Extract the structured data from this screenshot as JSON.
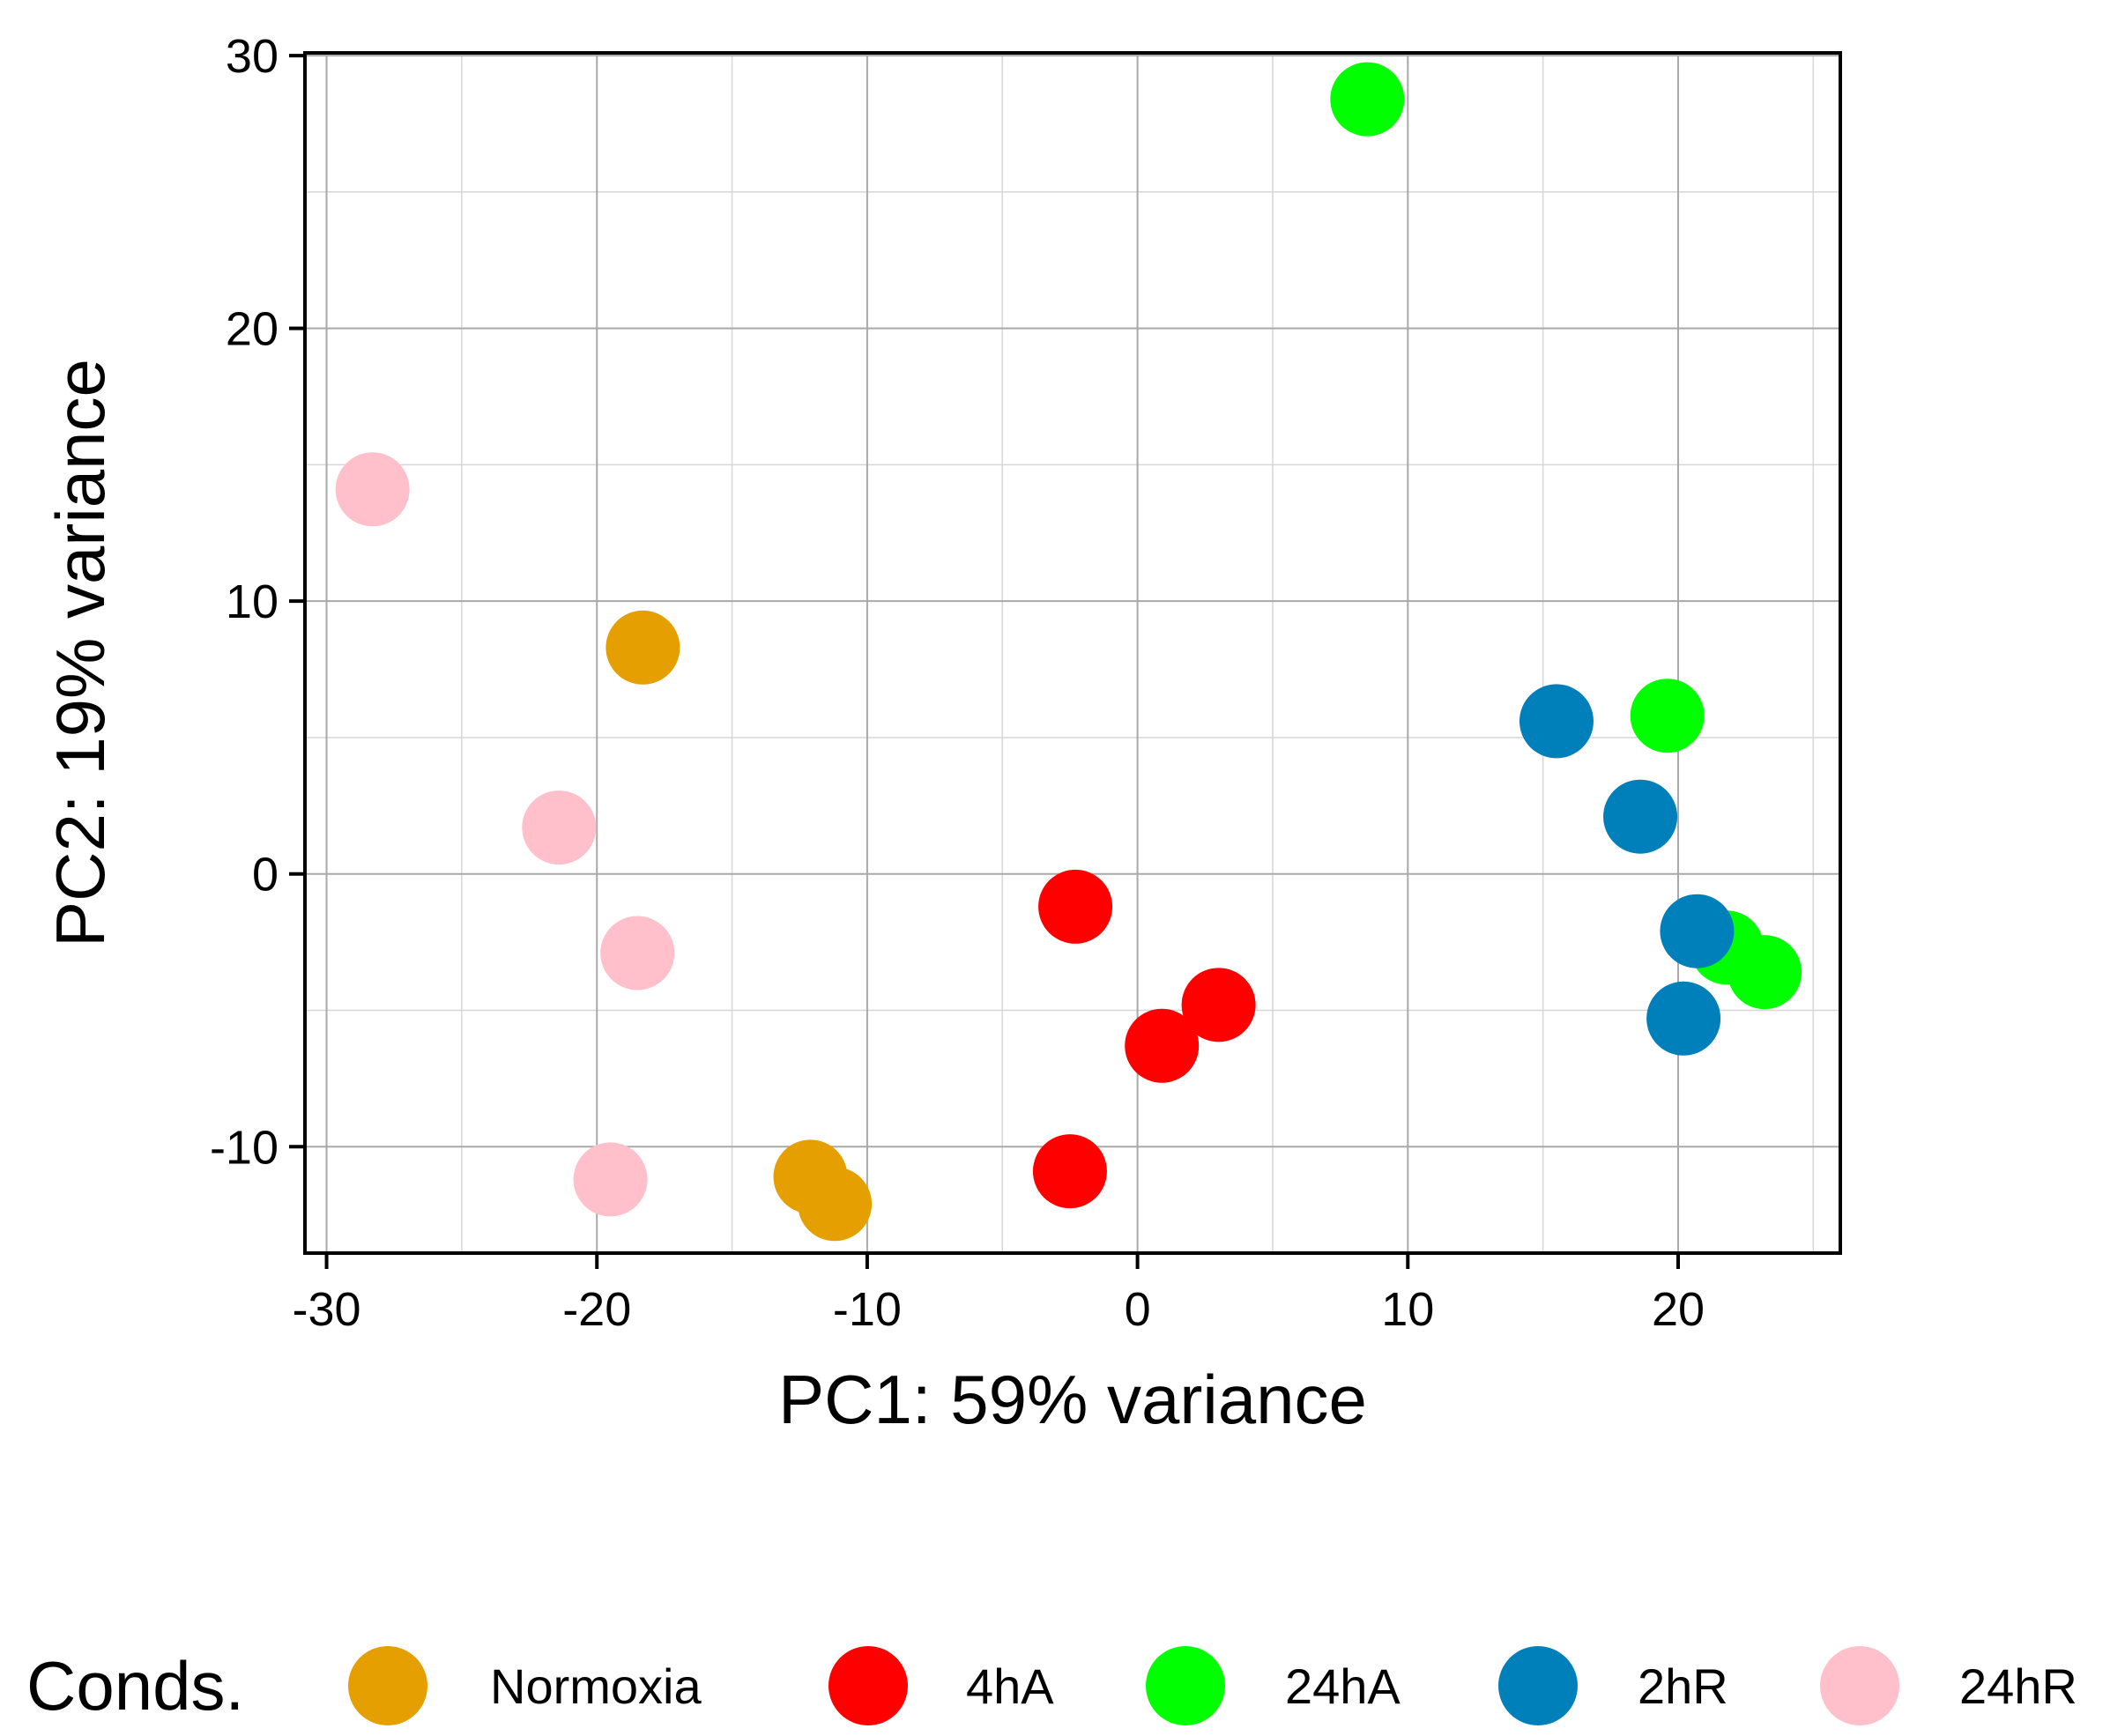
{
  "chart_data": {
    "type": "scatter",
    "xlabel": "PC1: 59% variance",
    "ylabel": "PC2: 19% variance",
    "xlim": [
      -30.8,
      26
    ],
    "ylim": [
      -13.9,
      30.1
    ],
    "x_ticks": [
      -30,
      -20,
      -10,
      0,
      10,
      20
    ],
    "y_ticks": [
      -10,
      0,
      10,
      20,
      30
    ],
    "x_tick_labels": [
      "-30",
      "-20",
      "-10",
      "0",
      "10",
      "20"
    ],
    "y_tick_labels": [
      "-10",
      "0",
      "10",
      "20",
      "30"
    ],
    "x_minor_ticks": [
      -25,
      -15,
      -5,
      5,
      15,
      25
    ],
    "y_minor_ticks": [
      -5,
      5,
      15,
      25
    ],
    "grid": true,
    "legend_title": "Conds.",
    "legend_position": "bottom",
    "series": [
      {
        "name": "Normoxia",
        "color": "#E69F00",
        "points": [
          {
            "x": -18.3,
            "y": 8.3
          },
          {
            "x": -12.1,
            "y": -11.1
          },
          {
            "x": -11.2,
            "y": -12.1
          }
        ]
      },
      {
        "name": "4hA",
        "color": "#FF0000",
        "points": [
          {
            "x": -2.3,
            "y": -1.2
          },
          {
            "x": 0.9,
            "y": -6.3
          },
          {
            "x": 3.0,
            "y": -4.8
          },
          {
            "x": -2.5,
            "y": -10.9
          }
        ]
      },
      {
        "name": "24hA",
        "color": "#00FF00",
        "points": [
          {
            "x": 8.5,
            "y": 28.4
          },
          {
            "x": 19.6,
            "y": 5.8
          },
          {
            "x": 21.8,
            "y": -2.7
          },
          {
            "x": 23.2,
            "y": -3.6
          }
        ]
      },
      {
        "name": "2hR",
        "color": "#0080BB",
        "points": [
          {
            "x": 15.5,
            "y": 5.6
          },
          {
            "x": 18.6,
            "y": 2.1
          },
          {
            "x": 20.7,
            "y": -2.1
          },
          {
            "x": 20.2,
            "y": -5.3
          }
        ]
      },
      {
        "name": "24hR",
        "color": "#FFC0CB",
        "points": [
          {
            "x": -28.3,
            "y": 14.1
          },
          {
            "x": -21.4,
            "y": 1.7
          },
          {
            "x": -18.5,
            "y": -2.9
          },
          {
            "x": -19.5,
            "y": -11.2
          }
        ]
      }
    ]
  }
}
